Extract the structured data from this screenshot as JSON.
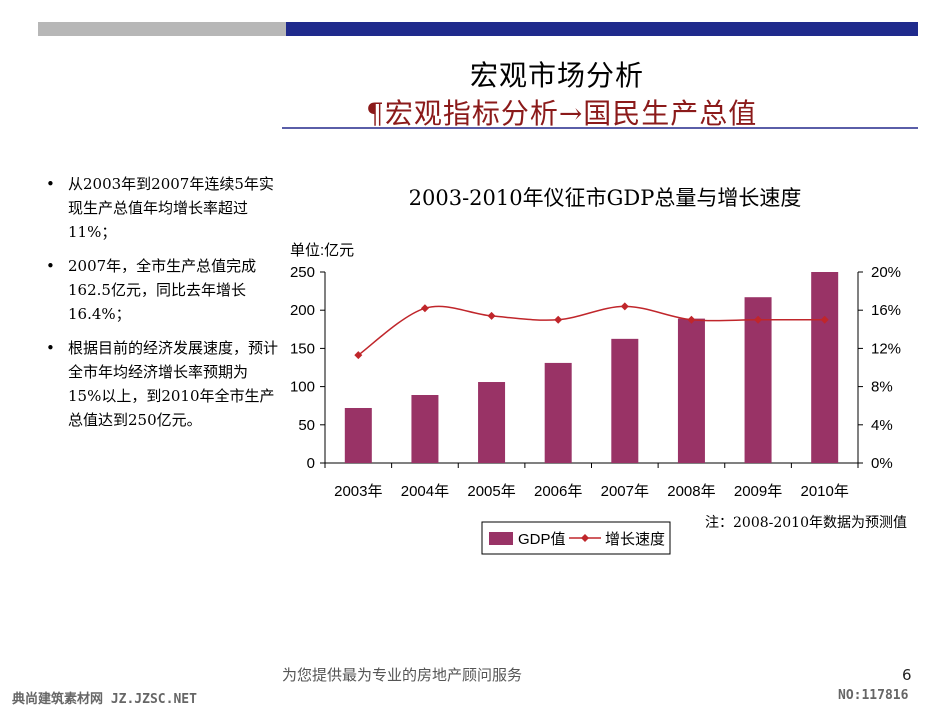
{
  "slide": {
    "title": "宏观市场分析",
    "subtitle": "¶宏观指标分析→国民生产总值",
    "bullets": [
      "从2003年到2007年连续5年实现生产总值年均增长率超过11%；",
      "2007年，全市生产总值完成162.5亿元，同比去年增长16.4%；",
      "根据目前的经济发展速度，预计全市年均经济增长率预期为15%以上，到2010年全市生产总值达到250亿元。"
    ],
    "footer": "为您提供最为专业的房地产顾问服务",
    "page_number": "6",
    "watermark_left": "典尚建筑素材网 JZ.JZSC.NET",
    "watermark_right": "NO:117816"
  },
  "chart_data": {
    "type": "bar",
    "title": "2003-2010年仪征市GDP总量与增长速度",
    "unit_label": "单位:亿元",
    "categories": [
      "2003年",
      "2004年",
      "2005年",
      "2006年",
      "2007年",
      "2008年",
      "2009年",
      "2010年"
    ],
    "series": [
      {
        "name": "GDP值",
        "type": "bar",
        "axis": "left",
        "color": "#993366",
        "values": [
          72,
          89,
          106,
          131,
          162.5,
          189,
          217,
          250
        ]
      },
      {
        "name": "增长速度",
        "type": "line",
        "axis": "right",
        "color": "#c0262b",
        "values": [
          11.3,
          16.2,
          15.4,
          15.0,
          16.4,
          15.0,
          15.0,
          15.0
        ]
      }
    ],
    "y_left": {
      "min": 0,
      "max": 250,
      "ticks": [
        "0",
        "50",
        "100",
        "150",
        "200",
        "250"
      ]
    },
    "y_right": {
      "min": 0,
      "max": 20,
      "ticks": [
        "0%",
        "4%",
        "8%",
        "12%",
        "16%",
        "20%"
      ]
    },
    "note": "注：2008-2010年数据为预测值",
    "legend_position": "bottom",
    "grid": false
  }
}
